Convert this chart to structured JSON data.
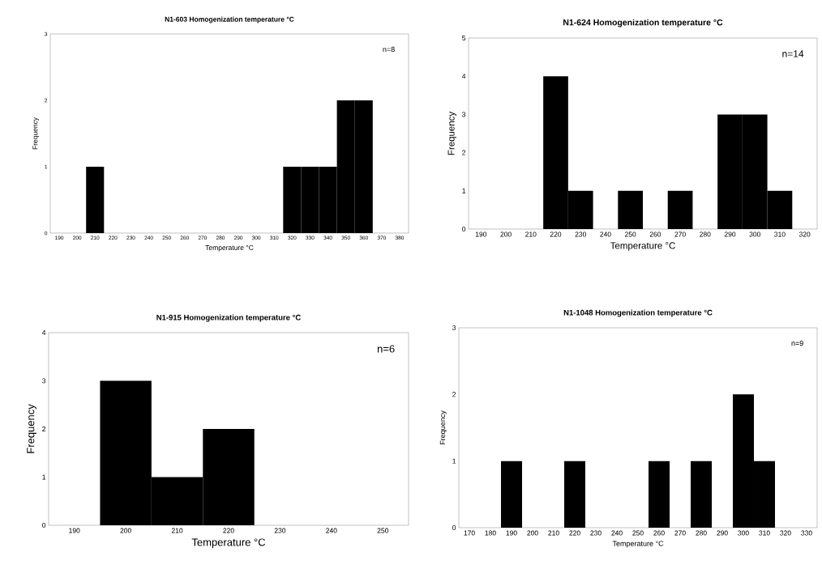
{
  "chart_data": [
    {
      "type": "bar",
      "title": "N1-603 Homogenization temperature °C",
      "xlabel": "Temperature °C",
      "ylabel": "Frequency",
      "categories": [
        "190",
        "200",
        "210",
        "220",
        "230",
        "240",
        "250",
        "260",
        "270",
        "280",
        "290",
        "300",
        "310",
        "320",
        "330",
        "340",
        "350",
        "360",
        "370",
        "380"
      ],
      "values": [
        0,
        0,
        1,
        0,
        0,
        0,
        0,
        0,
        0,
        0,
        0,
        0,
        0,
        1,
        1,
        1,
        2,
        2,
        0,
        0
      ],
      "color": "#000000",
      "ylim": [
        0,
        3
      ],
      "yticks": [
        0,
        1,
        2,
        3
      ],
      "annotations": [
        "n=8"
      ]
    },
    {
      "type": "bar",
      "title": "N1-624 Homogenization temperature °C",
      "xlabel": "Temperature °C",
      "ylabel": "Frequency",
      "categories": [
        "190",
        "200",
        "210",
        "220",
        "230",
        "240",
        "250",
        "260",
        "270",
        "280",
        "290",
        "300",
        "310",
        "320"
      ],
      "values": [
        0,
        0,
        0,
        4,
        1,
        0,
        1,
        0,
        1,
        0,
        3,
        3,
        1,
        0
      ],
      "color": "#000000",
      "ylim": [
        0,
        5
      ],
      "yticks": [
        0,
        1,
        2,
        3,
        4,
        5
      ],
      "annotations": [
        "n=14"
      ]
    },
    {
      "type": "bar",
      "title": "N1-915 Homogenization temperature °C",
      "xlabel": "Temperature °C",
      "ylabel": "Frequency",
      "categories": [
        "190",
        "200",
        "210",
        "220",
        "230",
        "240",
        "250"
      ],
      "values": [
        0,
        3,
        1,
        2,
        0,
        0,
        0
      ],
      "color": "#000000",
      "ylim": [
        0,
        4
      ],
      "yticks": [
        0,
        1,
        2,
        3,
        4
      ],
      "annotations": [
        "n=6"
      ]
    },
    {
      "type": "bar",
      "title": "N1-1048 Homogenization temperature °C",
      "xlabel": "Temperature °C",
      "ylabel": "Frequency",
      "categories": [
        "170",
        "180",
        "190",
        "200",
        "210",
        "220",
        "230",
        "240",
        "250",
        "260",
        "270",
        "280",
        "290",
        "300",
        "310",
        "320",
        "330"
      ],
      "values": [
        0,
        0,
        1,
        0,
        0,
        1,
        0,
        0,
        0,
        1,
        0,
        1,
        0,
        2,
        1,
        0,
        0
      ],
      "color": "#000000",
      "ylim": [
        0,
        3
      ],
      "yticks": [
        0,
        1,
        2,
        3
      ],
      "annotations": [
        "n=9"
      ]
    }
  ]
}
